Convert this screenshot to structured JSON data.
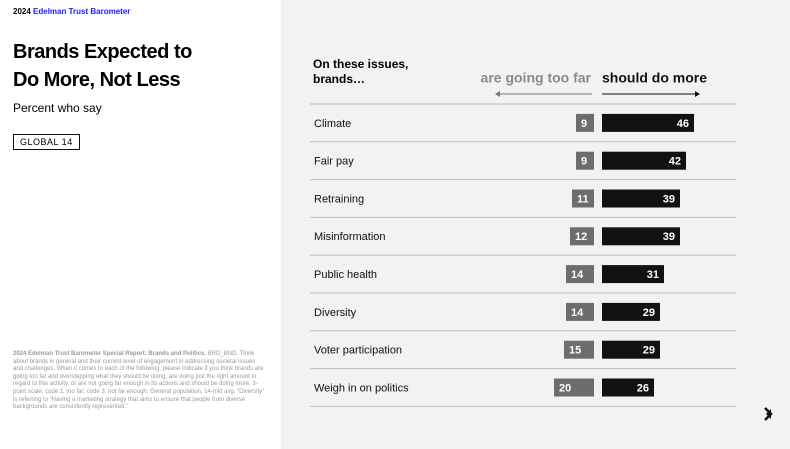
{
  "header": {
    "year": "2024",
    "brand": "Edelman Trust Barometer"
  },
  "title": "Brands Expected to Do More, Not Less",
  "subtitle": "Percent who say",
  "badge": "GLOBAL 14",
  "footnote": {
    "source": "2024 Edelman Trust Barometer Special Report: Brands and Politics.",
    "text": "BRD_BND. Think about brands in general and their current level of engagement in addressing societal issues and challenges. When it comes to each of the following, please indicate if you think brands are going too far and overstepping what they should be doing, are doing just the right amount in regard to this activity, or are not going far enough in its actions and should be doing more. 3-point scale; code 1, too far; code 3, not far enough. General population, 14-mkt avg. “Diversity” is referring to “Having a marketing strategy that aims to ensure that people from diverse backgrounds are consistently represented.”"
  },
  "chart_data": {
    "type": "diverging-bar",
    "category_header": "On these issues, brands…",
    "categories": [
      "Climate",
      "Fair pay",
      "Retraining",
      "Misinformation",
      "Public health",
      "Diversity",
      "Voter participation",
      "Weigh in on politics"
    ],
    "series": [
      {
        "name": "are going too far",
        "color": "#6d6d6d",
        "values": [
          9,
          9,
          11,
          12,
          14,
          14,
          15,
          20
        ]
      },
      {
        "name": "should do more",
        "color": "#111111",
        "values": [
          46,
          42,
          39,
          39,
          31,
          29,
          29,
          26
        ]
      }
    ]
  }
}
